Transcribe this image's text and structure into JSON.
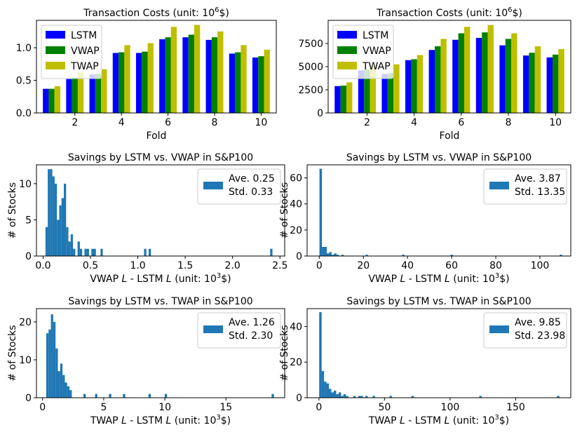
{
  "chart_data": [
    {
      "type": "bar",
      "title": "Transaction Costs (unit: 10",
      "title_sup": "6",
      "title_tail": "$)",
      "xlabel": "Fold",
      "ylabel": "",
      "categories": [
        1,
        2,
        3,
        4,
        5,
        6,
        7,
        8,
        9,
        10
      ],
      "xticks": [
        2,
        4,
        6,
        8,
        10
      ],
      "yticks": [
        0.0,
        0.5,
        1.0
      ],
      "ytick_labels": [
        "0.0",
        "0.5",
        "1.0"
      ],
      "ylim": [
        0,
        1.42
      ],
      "series": [
        {
          "name": "LSTM",
          "color": "#0000ff",
          "values": [
            0.37,
            0.52,
            0.59,
            0.92,
            0.92,
            1.13,
            1.16,
            1.12,
            0.91,
            0.85
          ]
        },
        {
          "name": "VWAP",
          "color": "#008000",
          "values": [
            0.37,
            0.54,
            0.6,
            0.93,
            0.94,
            1.16,
            1.2,
            1.16,
            0.93,
            0.87
          ]
        },
        {
          "name": "TWAP",
          "color": "#bfbf00",
          "values": [
            0.41,
            0.62,
            0.67,
            1.04,
            1.07,
            1.32,
            1.35,
            1.25,
            1.04,
            0.97
          ]
        }
      ]
    },
    {
      "type": "bar",
      "title": "Transaction Costs (unit: 10",
      "title_sup": "6",
      "title_tail": "$)",
      "xlabel": "Fold",
      "ylabel": "",
      "categories": [
        1,
        2,
        3,
        4,
        5,
        6,
        7,
        8,
        9,
        10
      ],
      "xticks": [
        2,
        4,
        6,
        8,
        10
      ],
      "yticks": [
        0,
        2500,
        5000,
        7500
      ],
      "ytick_labels": [
        "0",
        "2500",
        "5000",
        "7500"
      ],
      "ylim": [
        0,
        10000
      ],
      "series": [
        {
          "name": "LSTM",
          "color": "#0000ff",
          "values": [
            2900,
            4600,
            4200,
            5700,
            6800,
            7900,
            8100,
            7300,
            6200,
            6000
          ]
        },
        {
          "name": "VWAP",
          "color": "#008000",
          "values": [
            2950,
            4700,
            4300,
            5800,
            7200,
            8600,
            8700,
            8000,
            6500,
            6300
          ]
        },
        {
          "name": "TWAP",
          "color": "#bfbf00",
          "values": [
            3300,
            5100,
            5250,
            6250,
            8000,
            9300,
            9500,
            8600,
            7200,
            6900
          ]
        }
      ]
    },
    {
      "type": "histogram",
      "title": "Savings by LSTM vs. VWAP in S&P100",
      "xlabel_pre": "VWAP ",
      "xlabel_mid": " - LSTM ",
      "xlabel_post": " (unit: 10",
      "xlabel_sup": "3",
      "xlabel_tail": "$)",
      "xlabel_var": "L",
      "ylabel": "# of Stocks",
      "xlim": [
        -0.07,
        2.55
      ],
      "ylim": [
        0,
        12.6
      ],
      "xticks": [
        0.0,
        0.5,
        1.0,
        1.5,
        2.0,
        2.5
      ],
      "xtick_labels": [
        "0.0",
        "0.5",
        "1.0",
        "1.5",
        "2.0",
        "2.5"
      ],
      "yticks": [
        0,
        5,
        10
      ],
      "ytick_labels": [
        "0",
        "5",
        "10"
      ],
      "bin_start": 0.025,
      "bin_width": 0.0242,
      "bar_color": "#1f77b4",
      "counts": [
        4,
        12,
        12,
        11,
        10,
        5,
        7,
        8,
        10,
        4,
        2,
        3,
        1,
        0,
        2,
        1,
        0,
        1,
        1,
        0,
        1,
        1,
        0,
        0,
        1,
        0,
        0,
        0,
        0,
        0,
        0,
        0,
        0,
        0,
        0,
        0,
        0,
        0,
        0,
        0,
        0,
        0,
        0,
        1,
        0,
        1,
        0,
        0,
        0,
        0,
        0,
        0,
        0,
        0,
        0,
        0,
        0,
        0,
        0,
        0,
        0,
        0,
        0,
        0,
        0,
        0,
        0,
        0,
        0,
        0,
        0,
        0,
        0,
        0,
        0,
        0,
        0,
        0,
        0,
        0,
        0,
        0,
        0,
        0,
        0,
        0,
        0,
        0,
        0,
        0,
        0,
        0,
        0,
        0,
        0,
        0,
        0,
        0,
        1
      ],
      "legend": {
        "line1": "Ave. 0.25",
        "line2": "Std. 0.33",
        "placement": "top-right"
      }
    },
    {
      "type": "histogram",
      "title": "Savings by LSTM vs. VWAP in S&P100",
      "xlabel_pre": "VWAP ",
      "xlabel_mid": " - LSTM ",
      "xlabel_post": " (unit: 10",
      "xlabel_sup": "3",
      "xlabel_tail": "$)",
      "xlabel_var": "L",
      "ylabel": "# of Stocks",
      "xlim": [
        -5.5,
        114
      ],
      "ylim": [
        0,
        70
      ],
      "xticks": [
        0,
        20,
        40,
        60,
        80,
        100
      ],
      "xtick_labels": [
        "0",
        "20",
        "40",
        "60",
        "80",
        "100"
      ],
      "yticks": [
        0,
        20,
        40,
        60
      ],
      "ytick_labels": [
        "0",
        "20",
        "40",
        "60"
      ],
      "bin_start": 0.1,
      "bin_width": 1.1,
      "bar_color": "#1f77b4",
      "counts": [
        67,
        7,
        7,
        2,
        3,
        1,
        2,
        1,
        0,
        1,
        0,
        0,
        0,
        0,
        0,
        0,
        0,
        0,
        0,
        1,
        0,
        0,
        0,
        0,
        0,
        0,
        0,
        0,
        0,
        0,
        0,
        0,
        0,
        0,
        1,
        0,
        0,
        0,
        0,
        0,
        0,
        0,
        0,
        0,
        0,
        0,
        0,
        0,
        0,
        0,
        0,
        0,
        0,
        0,
        1,
        0,
        0,
        0,
        0,
        0,
        0,
        0,
        0,
        0,
        0,
        0,
        0,
        0,
        0,
        0,
        0,
        0,
        0,
        0,
        0,
        0,
        0,
        0,
        0,
        0,
        0,
        0,
        0,
        0,
        0,
        0,
        0,
        0,
        0,
        0,
        0,
        0,
        0,
        0,
        0,
        0,
        0,
        0,
        0,
        1
      ],
      "legend": {
        "line1": "Ave. 3.87",
        "line2": "Std. 13.35",
        "placement": "top-right"
      }
    },
    {
      "type": "histogram",
      "title": "Savings by LSTM vs. TWAP in S&P100",
      "xlabel_pre": "TWAP ",
      "xlabel_mid": " - LSTM ",
      "xlabel_post": " (unit: 10",
      "xlabel_sup": "3",
      "xlabel_tail": "$)",
      "xlabel_var": "L",
      "ylabel": "# of Stocks",
      "xlim": [
        -0.5,
        19.8
      ],
      "ylim": [
        0,
        23.5
      ],
      "xticks": [
        0,
        5,
        10,
        15
      ],
      "xtick_labels": [
        "0",
        "5",
        "10",
        "15"
      ],
      "yticks": [
        0,
        10,
        20
      ],
      "ytick_labels": [
        "0",
        "10",
        "20"
      ],
      "bin_start": 0.3,
      "bin_width": 0.19,
      "bar_color": "#1f77b4",
      "counts": [
        17,
        18,
        22,
        20,
        13,
        7,
        9,
        6,
        4,
        3,
        2,
        0,
        0,
        0,
        0,
        0,
        1,
        0,
        0,
        0,
        0,
        1,
        0,
        0,
        0,
        0,
        0,
        1,
        0,
        0,
        0,
        0,
        0,
        1,
        0,
        0,
        0,
        0,
        0,
        0,
        0,
        0,
        0,
        0,
        1,
        0,
        0,
        0,
        0,
        0,
        0,
        1,
        0,
        0,
        0,
        0,
        0,
        0,
        0,
        0,
        0,
        0,
        0,
        0,
        0,
        0,
        0,
        0,
        0,
        0,
        0,
        0,
        0,
        0,
        0,
        0,
        0,
        0,
        0,
        0,
        0,
        0,
        0,
        0,
        0,
        0,
        0,
        0,
        0,
        0,
        0,
        0,
        0,
        0,
        0,
        0,
        0,
        1
      ],
      "legend": {
        "line1": "Ave. 1.26",
        "line2": "Std. 2.30",
        "placement": "top-right"
      }
    },
    {
      "type": "histogram",
      "title": "Savings by LSTM vs. TWAP in S&P100",
      "xlabel_pre": "TWAP ",
      "xlabel_mid": " - LSTM ",
      "xlabel_post": " (unit: 10",
      "xlabel_sup": "3",
      "xlabel_tail": "$)",
      "xlabel_var": "L",
      "ylabel": "# of Stocks",
      "xlim": [
        -9,
        192
      ],
      "ylim": [
        0,
        50
      ],
      "xticks": [
        0,
        50,
        100,
        150
      ],
      "xtick_labels": [
        "0",
        "50",
        "100",
        "150"
      ],
      "yticks": [
        0,
        20,
        40
      ],
      "ytick_labels": [
        "0",
        "20",
        "40"
      ],
      "bin_start": 0.2,
      "bin_width": 1.85,
      "bar_color": "#1f77b4",
      "counts": [
        48,
        15,
        9,
        8,
        5,
        3,
        4,
        2,
        3,
        1,
        2,
        1,
        0,
        0,
        1,
        0,
        1,
        1,
        0,
        1,
        0,
        0,
        1,
        0,
        0,
        0,
        0,
        0,
        0,
        1,
        0,
        0,
        0,
        0,
        0,
        0,
        0,
        0,
        1,
        0,
        0,
        0,
        0,
        0,
        0,
        0,
        0,
        0,
        0,
        0,
        0,
        0,
        0,
        0,
        0,
        0,
        0,
        0,
        0,
        0,
        0,
        0,
        0,
        0,
        0,
        0,
        1,
        0,
        0,
        0,
        0,
        0,
        0,
        0,
        0,
        0,
        0,
        0,
        0,
        0,
        0,
        0,
        0,
        0,
        0,
        0,
        0,
        0,
        0,
        0,
        0,
        0,
        0,
        0,
        0,
        0,
        0,
        0,
        1
      ],
      "legend": {
        "line1": "Ave. 9.85",
        "line2": "Std. 23.98",
        "placement": "top-right"
      }
    }
  ]
}
